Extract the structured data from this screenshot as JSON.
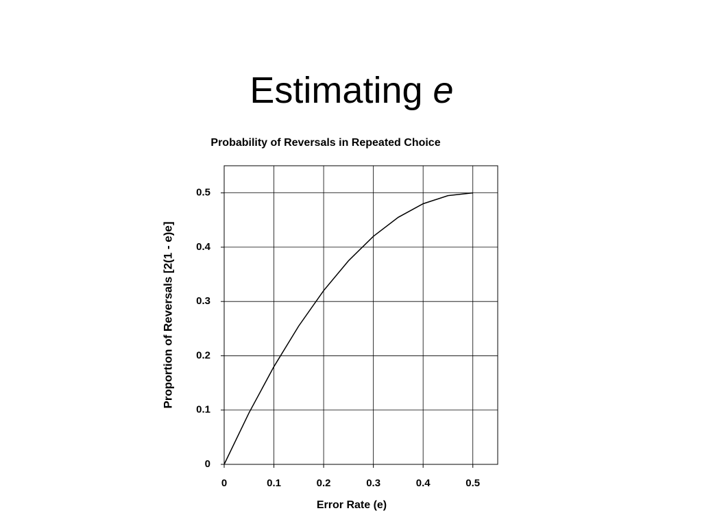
{
  "slide": {
    "title": "Estimating",
    "title_emphasis": "e"
  },
  "chart_data": {
    "type": "line",
    "title": "Probability of Reversals in Repeated Choice",
    "x_label": "Error Rate (e)",
    "y_label": "Proportion of Reversals [2(1 - e)e]",
    "x": [
      0,
      0.05,
      0.1,
      0.15,
      0.2,
      0.25,
      0.3,
      0.35,
      0.4,
      0.45,
      0.5
    ],
    "series": [
      {
        "color": "#000000",
        "values": [
          0,
          0.095,
          0.18,
          0.255,
          0.32,
          0.375,
          0.42,
          0.455,
          0.48,
          0.495,
          0.5
        ]
      }
    ],
    "xlim": [
      0,
      0.55
    ],
    "ylim": [
      0,
      0.55
    ],
    "xticks": [
      0,
      0.1,
      0.2,
      0.3,
      0.4,
      0.5
    ],
    "yticks": [
      0,
      0.1,
      0.2,
      0.3,
      0.4,
      0.5
    ],
    "grid": true
  }
}
